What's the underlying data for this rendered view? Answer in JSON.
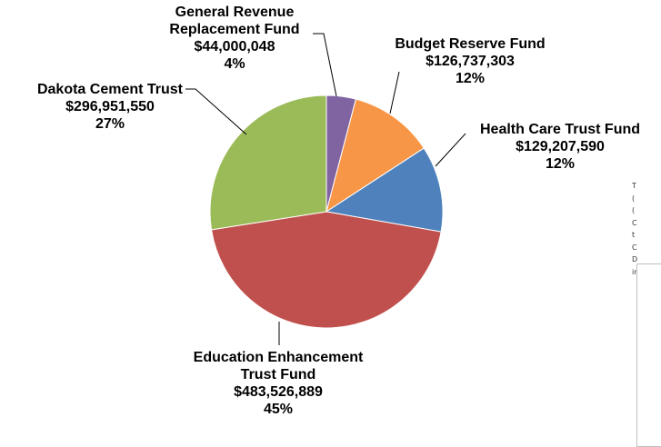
{
  "chart_data": {
    "type": "pie",
    "title": "",
    "slices": [
      {
        "name": "General Revenue Replacement Fund",
        "label_lines": [
          "General Revenue",
          "Replacement Fund",
          "$44,000,048",
          "4%"
        ],
        "value": 44000048,
        "percent": 4,
        "color": "#8064a2"
      },
      {
        "name": "Budget Reserve Fund",
        "label_lines": [
          "Budget Reserve Fund",
          "$126,737,303",
          "12%"
        ],
        "value": 126737303,
        "percent": 12,
        "color": "#f79646"
      },
      {
        "name": "Health Care Trust Fund",
        "label_lines": [
          "Health Care Trust Fund",
          "$129,207,590",
          "12%"
        ],
        "value": 129207590,
        "percent": 12,
        "color": "#4f81bd"
      },
      {
        "name": "Education Enhancement Trust Fund",
        "label_lines": [
          "Education Enhancement",
          "Trust Fund",
          "$483,526,889",
          "45%"
        ],
        "value": 483526889,
        "percent": 45,
        "color": "#c0504d"
      },
      {
        "name": "Dakota Cement Trust",
        "label_lines": [
          "Dakota Cement Trust",
          "$296,951,550",
          "27%"
        ],
        "value": 296951550,
        "percent": 27,
        "color": "#9bbb59"
      }
    ]
  },
  "side_note": {
    "lines": [
      "T",
      "(",
      "(",
      "C",
      "t",
      "C",
      "D",
      "ir"
    ]
  }
}
